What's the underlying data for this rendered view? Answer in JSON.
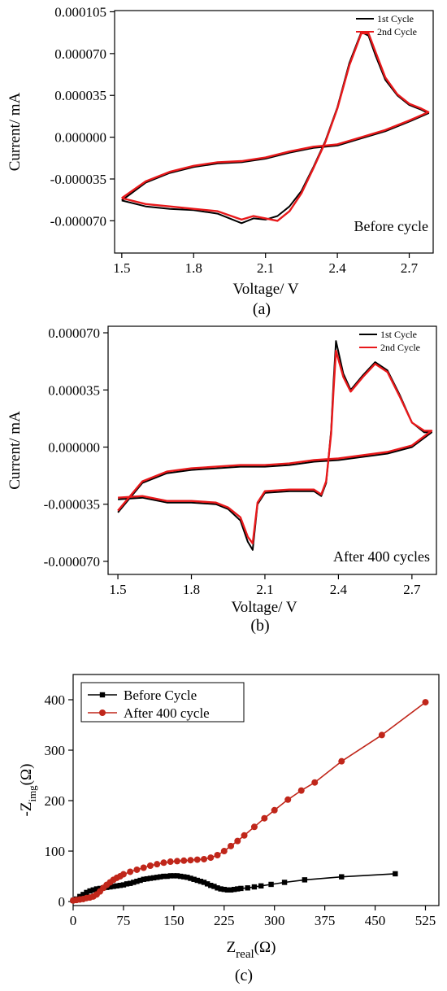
{
  "chart_data": [
    {
      "type": "line",
      "panel_caption": "(a)",
      "annotation": "Before cycle",
      "xlabel": "Voltage/ V",
      "ylabel": "Current/ mA",
      "xlim": [
        1.47,
        2.8
      ],
      "ylim": [
        -9.7e-05,
        0.000106
      ],
      "x_ticks": [
        1.5,
        1.8,
        2.1,
        2.4,
        2.7
      ],
      "x_tick_labels": [
        "1.5",
        "1.8",
        "2.1",
        "2.4",
        "2.7"
      ],
      "y_ticks": [
        0.000105,
        7e-05,
        3.5e-05,
        0.0,
        -3.5e-05,
        -7e-05
      ],
      "y_tick_labels": [
        "0.000105",
        "0.000070",
        "0.000035",
        "0.000000",
        "-0.000035",
        "-0.000070"
      ],
      "legend_position": "top-right",
      "series": [
        {
          "name": "1st Cycle",
          "color": "#000000",
          "x": [
            1.5,
            1.6,
            1.7,
            1.8,
            1.9,
            2.0,
            2.05,
            2.1,
            2.15,
            2.2,
            2.25,
            2.3,
            2.35,
            2.4,
            2.45,
            2.5,
            2.53,
            2.56,
            2.6,
            2.65,
            2.7,
            2.75,
            2.78,
            2.7,
            2.6,
            2.5,
            2.4,
            2.3,
            2.2,
            2.1,
            2.0,
            1.9,
            1.8,
            1.7,
            1.6,
            1.5
          ],
          "y": [
            -5.3e-05,
            -5.8e-05,
            -6e-05,
            -6.1e-05,
            -6.4e-05,
            -7.2e-05,
            -6.8e-05,
            -6.9e-05,
            -6.6e-05,
            -5.8e-05,
            -4.5e-05,
            -2.5e-05,
            -3e-06,
            2.5e-05,
            6.2e-05,
            8.8e-05,
            8.5e-05,
            6.8e-05,
            4.8e-05,
            3.5e-05,
            2.7e-05,
            2.3e-05,
            2e-05,
            1.3e-05,
            5e-06,
            -1e-06,
            -7e-06,
            -9e-06,
            -1.3e-05,
            -1.8e-05,
            -2.1e-05,
            -2.2e-05,
            -2.5e-05,
            -3e-05,
            -3.8e-05,
            -5.3e-05
          ]
        },
        {
          "name": "2nd Cycle",
          "color": "#e8191b",
          "x": [
            1.5,
            1.6,
            1.7,
            1.8,
            1.9,
            2.0,
            2.05,
            2.1,
            2.15,
            2.2,
            2.25,
            2.3,
            2.35,
            2.4,
            2.45,
            2.5,
            2.53,
            2.56,
            2.6,
            2.65,
            2.7,
            2.75,
            2.78,
            2.7,
            2.6,
            2.5,
            2.4,
            2.3,
            2.2,
            2.1,
            2.0,
            1.9,
            1.8,
            1.7,
            1.6,
            1.5
          ],
          "y": [
            -5.1e-05,
            -5.6e-05,
            -5.8e-05,
            -6e-05,
            -6.2e-05,
            -6.9e-05,
            -6.6e-05,
            -6.8e-05,
            -7e-05,
            -6.2e-05,
            -4.7e-05,
            -2.6e-05,
            -4e-06,
            2.4e-05,
            6e-05,
            8.7e-05,
            8.7e-05,
            7.1e-05,
            5e-05,
            3.6e-05,
            2.8e-05,
            2.4e-05,
            2.1e-05,
            1.4e-05,
            6e-06,
            0.0,
            -6e-06,
            -8e-06,
            -1.2e-05,
            -1.7e-05,
            -2e-05,
            -2.1e-05,
            -2.4e-05,
            -2.9e-05,
            -3.7e-05,
            -5.1e-05
          ]
        }
      ]
    },
    {
      "type": "line",
      "panel_caption": "(b)",
      "annotation": "After 400 cycles",
      "xlabel": "Voltage/ V",
      "ylabel": "Current/ mA",
      "xlim": [
        1.46,
        2.8
      ],
      "ylim": [
        -7.8e-05,
        7.4e-05
      ],
      "x_ticks": [
        1.5,
        1.8,
        2.1,
        2.4,
        2.7
      ],
      "x_tick_labels": [
        "1.5",
        "1.8",
        "2.1",
        "2.4",
        "2.7"
      ],
      "y_ticks": [
        7e-05,
        3.5e-05,
        0.0,
        -3.5e-05,
        -7e-05
      ],
      "y_tick_labels": [
        "0.000070",
        "0.000035",
        "0.000000",
        "-0.000035",
        "-0.000070"
      ],
      "legend_position": "top-right",
      "series": [
        {
          "name": "1st Cycle",
          "color": "#000000",
          "x": [
            1.5,
            1.6,
            1.7,
            1.8,
            1.9,
            1.95,
            2.0,
            2.03,
            2.05,
            2.07,
            2.1,
            2.2,
            2.3,
            2.33,
            2.35,
            2.37,
            2.38,
            2.39,
            2.42,
            2.45,
            2.5,
            2.55,
            2.6,
            2.65,
            2.7,
            2.75,
            2.78,
            2.7,
            2.6,
            2.5,
            2.4,
            2.3,
            2.2,
            2.1,
            2.0,
            1.9,
            1.8,
            1.7,
            1.6,
            1.5
          ],
          "y": [
            -3.2e-05,
            -3.1e-05,
            -3.4e-05,
            -3.4e-05,
            -3.5e-05,
            -3.8e-05,
            -4.5e-05,
            -5.8e-05,
            -6.3e-05,
            -3.5e-05,
            -2.8e-05,
            -2.7e-05,
            -2.7e-05,
            -3e-05,
            -2.2e-05,
            1e-05,
            4e-05,
            6.5e-05,
            4.5e-05,
            3.5e-05,
            4.4e-05,
            5.2e-05,
            4.7e-05,
            3.2e-05,
            1.5e-05,
            9e-06,
            9e-06,
            0.0,
            -4e-06,
            -6e-06,
            -8e-06,
            -9e-06,
            -1.1e-05,
            -1.2e-05,
            -1.2e-05,
            -1.3e-05,
            -1.4e-05,
            -1.6e-05,
            -2.2e-05,
            -4e-05
          ]
        },
        {
          "name": "2nd Cycle",
          "color": "#e8191b",
          "x": [
            1.5,
            1.6,
            1.7,
            1.8,
            1.9,
            1.95,
            2.0,
            2.03,
            2.05,
            2.07,
            2.1,
            2.2,
            2.3,
            2.33,
            2.35,
            2.37,
            2.38,
            2.39,
            2.42,
            2.45,
            2.5,
            2.55,
            2.6,
            2.65,
            2.7,
            2.75,
            2.78,
            2.7,
            2.6,
            2.5,
            2.4,
            2.3,
            2.2,
            2.1,
            2.0,
            1.9,
            1.8,
            1.7,
            1.6,
            1.5
          ],
          "y": [
            -3.1e-05,
            -3e-05,
            -3.3e-05,
            -3.3e-05,
            -3.4e-05,
            -3.7e-05,
            -4.3e-05,
            -5.5e-05,
            -5.9e-05,
            -3.4e-05,
            -2.7e-05,
            -2.6e-05,
            -2.6e-05,
            -2.9e-05,
            -2.1e-05,
            8e-06,
            3.5e-05,
            5.9e-05,
            4.3e-05,
            3.4e-05,
            4.3e-05,
            5.1e-05,
            4.6e-05,
            3.1e-05,
            1.5e-05,
            1e-05,
            1e-05,
            1e-06,
            -3e-06,
            -5e-06,
            -7e-06,
            -8e-06,
            -1e-05,
            -1.1e-05,
            -1.1e-05,
            -1.2e-05,
            -1.3e-05,
            -1.5e-05,
            -2.1e-05,
            -3.9e-05
          ]
        }
      ]
    },
    {
      "type": "line",
      "panel_caption": "(c)",
      "xlabel_main": "Z",
      "xlabel_sub": "real",
      "xlabel_unit": "(Ω)",
      "ylabel_main": "-Z",
      "ylabel_sub": "img",
      "ylabel_unit": "(Ω)",
      "xlim": [
        0,
        545
      ],
      "ylim": [
        -8,
        450
      ],
      "x_ticks": [
        0,
        75,
        150,
        225,
        300,
        375,
        450,
        525
      ],
      "x_tick_labels": [
        "0",
        "75",
        "150",
        "225",
        "300",
        "375",
        "450",
        "525"
      ],
      "y_ticks": [
        0,
        100,
        200,
        300,
        400
      ],
      "y_tick_labels": [
        "0",
        "100",
        "200",
        "300",
        "400"
      ],
      "legend_position": "top-left",
      "series": [
        {
          "name": "Before Cycle",
          "color": "#000000",
          "marker": "square",
          "x": [
            0,
            5,
            10,
            15,
            20,
            25,
            30,
            35,
            40,
            45,
            50,
            55,
            60,
            65,
            70,
            75,
            80,
            85,
            90,
            95,
            100,
            105,
            110,
            115,
            120,
            125,
            130,
            135,
            140,
            145,
            150,
            155,
            160,
            165,
            170,
            175,
            180,
            185,
            190,
            195,
            200,
            205,
            210,
            215,
            220,
            225,
            230,
            235,
            240,
            245,
            250,
            260,
            270,
            280,
            295,
            315,
            345,
            400,
            480
          ],
          "y": [
            2,
            5,
            10,
            14,
            18,
            21,
            23,
            25,
            26,
            27,
            28,
            29,
            30,
            31,
            32,
            33,
            35,
            36,
            38,
            40,
            42,
            44,
            45,
            46,
            47,
            48,
            49,
            50,
            50,
            51,
            51,
            51,
            50,
            49,
            48,
            46,
            44,
            42,
            40,
            38,
            35,
            32,
            30,
            27,
            25,
            24,
            23,
            23,
            24,
            25,
            26,
            27,
            29,
            31,
            34,
            38,
            43,
            49,
            55
          ]
        },
        {
          "name": "After 400 cycle",
          "color": "#c0261a",
          "marker": "circle",
          "x": [
            0,
            5,
            10,
            15,
            20,
            25,
            30,
            35,
            40,
            45,
            50,
            55,
            60,
            65,
            70,
            75,
            85,
            95,
            105,
            115,
            125,
            135,
            145,
            155,
            165,
            175,
            185,
            195,
            205,
            215,
            225,
            235,
            245,
            255,
            270,
            285,
            300,
            320,
            340,
            360,
            400,
            460,
            525
          ],
          "y": [
            2,
            3,
            4,
            5,
            7,
            8,
            10,
            14,
            20,
            27,
            33,
            38,
            43,
            47,
            50,
            54,
            59,
            63,
            67,
            71,
            74,
            77,
            79,
            80,
            81,
            82,
            83,
            84,
            87,
            92,
            100,
            110,
            120,
            131,
            148,
            165,
            181,
            202,
            220,
            236,
            278,
            330,
            395
          ]
        }
      ]
    }
  ]
}
